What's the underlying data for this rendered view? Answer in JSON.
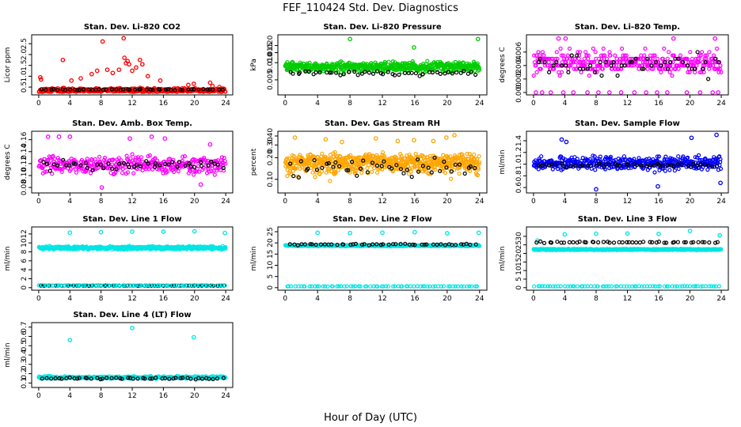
{
  "figure": {
    "title": "FEF_110424  Std. Dev. Diagnostics",
    "xlabel": "Hour of Day (UTC)"
  },
  "chart_data": [
    {
      "type": "scatter",
      "title": "Stan. Dev. Li-820 CO2",
      "xlabel": "",
      "ylabel": "Licor ppm",
      "xlim": [
        0,
        24
      ],
      "ylim": [
        0.25,
        2.8
      ],
      "xticks": [
        0,
        4,
        8,
        12,
        16,
        20,
        24
      ],
      "yticks": [
        0.5,
        1.0,
        1.5,
        2.0,
        2.5
      ],
      "ytick_labels": [
        "0.5",
        "1.0",
        "1.5",
        "2.0",
        "2.5"
      ],
      "log_y": false,
      "grid": false,
      "series": [
        {
          "color": "#ff0000",
          "hour_span": [
            0,
            24
          ],
          "n_points": 420,
          "base": 0.35,
          "spread": 0.15,
          "highlights": [
            [
              0.2,
              0.95
            ],
            [
              0.3,
              0.85
            ],
            [
              3.1,
              1.75
            ],
            [
              4.2,
              0.8
            ],
            [
              5.4,
              0.9
            ],
            [
              6.8,
              1.1
            ],
            [
              7.5,
              1.25
            ],
            [
              8.2,
              2.6
            ],
            [
              8.8,
              1.3
            ],
            [
              9.5,
              1.15
            ],
            [
              10.3,
              1.3
            ],
            [
              10.9,
              2.75
            ],
            [
              11.0,
              1.85
            ],
            [
              11.2,
              1.6
            ],
            [
              11.4,
              1.7
            ],
            [
              11.6,
              1.55
            ],
            [
              12.0,
              1.25
            ],
            [
              12.5,
              1.4
            ],
            [
              13.0,
              1.75
            ],
            [
              13.3,
              1.55
            ],
            [
              14.0,
              1.0
            ],
            [
              15.6,
              0.8
            ],
            [
              19.2,
              0.6
            ],
            [
              19.9,
              0.65
            ],
            [
              22.0,
              0.7
            ],
            [
              22.3,
              0.55
            ],
            [
              23.2,
              0.5
            ]
          ]
        },
        {
          "color": "#000000",
          "hour_span": [
            0.3,
            23.8
          ],
          "n_points": 48,
          "base": 0.38,
          "spread": 0.04,
          "highlights": []
        }
      ]
    },
    {
      "type": "scatter",
      "title": "Stan. Dev. Li-820 Pressure",
      "xlabel": "",
      "ylabel": "kPa",
      "xlim": [
        0,
        24
      ],
      "ylim": [
        0.003,
        0.028
      ],
      "xticks": [
        0,
        4,
        8,
        12,
        16,
        20,
        24
      ],
      "yticks": [
        0.005,
        0.01,
        0.015,
        0.02
      ],
      "ytick_labels": [
        "0.005",
        "0.010",
        "0.015",
        "0.020"
      ],
      "log_y": true,
      "grid": false,
      "series": [
        {
          "color": "#00cc00",
          "hour_span": [
            0,
            24
          ],
          "n_points": 520,
          "base": 0.0085,
          "spread": 0.0025,
          "highlights": [
            [
              8.0,
              0.026
            ],
            [
              15.9,
              0.0185
            ],
            [
              23.8,
              0.026
            ]
          ]
        },
        {
          "color": "#000000",
          "hour_span": [
            0.3,
            23.8
          ],
          "n_points": 48,
          "base": 0.0065,
          "spread": 0.0008,
          "highlights": []
        }
      ]
    },
    {
      "type": "scatter",
      "title": "Stan. Dev. Li-820 Temp.",
      "xlabel": "",
      "ylabel": "degrees C",
      "xlim": [
        0,
        24
      ],
      "ylim": [
        0,
        0.0082
      ],
      "xticks": [
        0,
        4,
        8,
        12,
        16,
        20,
        24
      ],
      "yticks": [
        0.0,
        0.002,
        0.004,
        0.006
      ],
      "ytick_labels": [
        "0.000",
        "0.002",
        "0.004",
        "0.006"
      ],
      "log_y": false,
      "grid": false,
      "series": [
        {
          "color": "#ff00ff",
          "hour_span": [
            0,
            24
          ],
          "n_points": 360,
          "base": 0.0045,
          "spread": 0.0025,
          "quantize": 0.0005,
          "highlights": [
            [
              0.3,
              0.0
            ],
            [
              1.1,
              0.0
            ],
            [
              2.2,
              0.0
            ],
            [
              3.8,
              0.0
            ],
            [
              5.1,
              0.0
            ],
            [
              6.9,
              0.0
            ],
            [
              8.3,
              0.0
            ],
            [
              9.7,
              0.0
            ],
            [
              11.2,
              0.0
            ],
            [
              12.9,
              0.0
            ],
            [
              14.4,
              0.0
            ],
            [
              15.8,
              0.0
            ],
            [
              17.1,
              0.0
            ],
            [
              19.6,
              0.0
            ],
            [
              21.3,
              0.0
            ],
            [
              22.9,
              0.0
            ],
            [
              23.6,
              0.0
            ],
            [
              3.2,
              0.008
            ],
            [
              4.1,
              0.008
            ],
            [
              17.9,
              0.008
            ],
            [
              23.2,
              0.008
            ]
          ]
        },
        {
          "color": "#000000",
          "hour_span": [
            0.3,
            23.8
          ],
          "n_points": 48,
          "base": 0.004,
          "spread": 0.0025,
          "quantize": 0.0005,
          "highlights": []
        }
      ]
    },
    {
      "type": "scatter",
      "title": "Stan. Dev. Amb. Box Temp.",
      "xlabel": "",
      "ylabel": "degrees C",
      "xlim": [
        0,
        24
      ],
      "ylim": [
        0.075,
        0.17
      ],
      "xticks": [
        0,
        4,
        8,
        12,
        16,
        20,
        24
      ],
      "yticks": [
        0.08,
        0.1,
        0.12,
        0.14,
        0.16
      ],
      "ytick_labels": [
        "0.08",
        "0.10",
        "0.12",
        "0.14",
        "0.16"
      ],
      "log_y": false,
      "grid": false,
      "series": [
        {
          "color": "#ff00ff",
          "hour_span": [
            0,
            24
          ],
          "n_points": 360,
          "base": 0.118,
          "spread": 0.022,
          "highlights": [
            [
              1.2,
              0.165
            ],
            [
              2.6,
              0.165
            ],
            [
              4.0,
              0.165
            ],
            [
              8.1,
              0.08
            ],
            [
              11.7,
              0.162
            ],
            [
              14.5,
              0.165
            ],
            [
              16.2,
              0.162
            ],
            [
              20.8,
              0.085
            ],
            [
              22.0,
              0.152
            ]
          ]
        },
        {
          "color": "#000000",
          "hour_span": [
            0.3,
            23.8
          ],
          "n_points": 48,
          "base": 0.118,
          "spread": 0.012,
          "highlights": []
        }
      ]
    },
    {
      "type": "scatter",
      "title": "Stan. Dev. Gas Stream RH",
      "xlabel": "",
      "ylabel": "percent",
      "xlim": [
        0,
        24
      ],
      "ylim": [
        0.07,
        0.43
      ],
      "xticks": [
        0,
        4,
        8,
        12,
        16,
        20,
        24
      ],
      "yticks": [
        0.1,
        0.2,
        0.3,
        0.4
      ],
      "ytick_labels": [
        "0.10",
        "0.20",
        "0.30",
        "0.40"
      ],
      "log_y": true,
      "grid": false,
      "series": [
        {
          "color": "#ffa500",
          "hour_span": [
            0,
            24
          ],
          "n_points": 620,
          "base": 0.17,
          "spread": 0.08,
          "highlights": [
            [
              1.2,
              0.38
            ],
            [
              5.0,
              0.36
            ],
            [
              7.0,
              0.33
            ],
            [
              11.2,
              0.37
            ],
            [
              13.9,
              0.34
            ],
            [
              15.9,
              0.35
            ],
            [
              18.3,
              0.34
            ],
            [
              19.9,
              0.38
            ],
            [
              20.9,
              0.41
            ]
          ]
        },
        {
          "color": "#000000",
          "hour_span": [
            0.3,
            23.8
          ],
          "n_points": 48,
          "base": 0.15,
          "spread": 0.06,
          "highlights": []
        }
      ]
    },
    {
      "type": "scatter",
      "title": "Stan. Dev. Sample Flow",
      "xlabel": "",
      "ylabel": "ml/min",
      "xlim": [
        0,
        24
      ],
      "ylim": [
        0.55,
        1.52
      ],
      "xticks": [
        0,
        4,
        8,
        12,
        16,
        20,
        24
      ],
      "yticks": [
        0.6,
        0.8,
        1.0,
        1.2,
        1.4
      ],
      "ytick_labels": [
        "0.6",
        "0.8",
        "1.0",
        "1.2",
        "1.4"
      ],
      "log_y": false,
      "grid": false,
      "series": [
        {
          "color": "#0000ff",
          "hour_span": [
            0,
            24
          ],
          "n_points": 420,
          "base": 1.02,
          "spread": 0.17,
          "highlights": [
            [
              3.6,
              1.42
            ],
            [
              4.2,
              1.38
            ],
            [
              8.0,
              0.57
            ],
            [
              15.9,
              0.62
            ],
            [
              20.2,
              1.45
            ],
            [
              23.4,
              1.5
            ],
            [
              23.9,
              0.68
            ]
          ]
        },
        {
          "color": "#000000",
          "hour_span": [
            0.3,
            23.8
          ],
          "n_points": 48,
          "base": 0.98,
          "spread": 0.05,
          "highlights": []
        }
      ]
    },
    {
      "type": "scatter",
      "title": "Stan. Dev. Line 1 Flow",
      "xlabel": "",
      "ylabel": "ml/min",
      "xlim": [
        0,
        24
      ],
      "ylim": [
        0,
        13
      ],
      "xticks": [
        0,
        4,
        8,
        12,
        16,
        20,
        24
      ],
      "yticks": [
        0,
        2,
        4,
        6,
        8,
        10,
        12
      ],
      "ytick_labels": [
        "0",
        "2",
        "4",
        "6",
        "8",
        "10",
        "12"
      ],
      "log_y": false,
      "grid": false,
      "series": [
        {
          "color": "#00e5e5",
          "hour_span": [
            0,
            24
          ],
          "n_points": 520,
          "base": 8.9,
          "spread": 0.5,
          "highlights": [
            [
              4.0,
              12.3
            ],
            [
              8.0,
              12.4
            ],
            [
              12.0,
              12.5
            ],
            [
              16.0,
              12.5
            ],
            [
              20.0,
              12.6
            ],
            [
              23.9,
              12.2
            ]
          ]
        },
        {
          "color": "#000000",
          "hour_span": [
            0,
            24
          ],
          "n_points": 70,
          "base": 0.45,
          "spread": 0.05,
          "highlights": []
        },
        {
          "color": "#00e5e5",
          "hour_span": [
            0,
            24
          ],
          "n_points": 70,
          "base": 0.5,
          "spread": 0.05,
          "highlights": []
        }
      ]
    },
    {
      "type": "scatter",
      "title": "Stan. Dev. Line 2 Flow",
      "xlabel": "",
      "ylabel": "ml/min",
      "xlim": [
        0,
        24
      ],
      "ylim": [
        0,
        26
      ],
      "xticks": [
        0,
        4,
        8,
        12,
        16,
        20,
        24
      ],
      "yticks": [
        0,
        5,
        10,
        15,
        20,
        25
      ],
      "ytick_labels": [
        "0",
        "5",
        "10",
        "15",
        "20",
        "25"
      ],
      "log_y": false,
      "grid": false,
      "series": [
        {
          "color": "#00e5e5",
          "hour_span": [
            0,
            24
          ],
          "n_points": 520,
          "base": 18.8,
          "spread": 0.4,
          "highlights": [
            [
              4.0,
              24.5
            ],
            [
              8.0,
              24.4
            ],
            [
              12.0,
              24.6
            ],
            [
              16.0,
              24.8
            ],
            [
              20.0,
              24.3
            ],
            [
              23.9,
              24.5
            ]
          ]
        },
        {
          "color": "#000000",
          "hour_span": [
            0.3,
            23.8
          ],
          "n_points": 48,
          "base": 19.3,
          "spread": 0.5,
          "highlights": []
        },
        {
          "color": "#00e5e5",
          "hour_span": [
            0,
            24
          ],
          "n_points": 70,
          "base": 0.6,
          "spread": 0.1,
          "highlights": []
        }
      ]
    },
    {
      "type": "scatter",
      "title": "Stan. Dev. Line 3 Flow",
      "xlabel": "",
      "ylabel": "ml/min",
      "xlim": [
        0,
        24
      ],
      "ylim": [
        0,
        34
      ],
      "xticks": [
        0,
        4,
        8,
        12,
        16,
        20,
        24
      ],
      "yticks": [
        0,
        5,
        10,
        15,
        20,
        25,
        30
      ],
      "ytick_labels": [
        "0",
        "5",
        "10",
        "15",
        "20",
        "25",
        "30"
      ],
      "log_y": false,
      "grid": false,
      "series": [
        {
          "color": "#00e5e5",
          "hour_span": [
            0,
            24
          ],
          "n_points": 520,
          "base": 22.3,
          "spread": 0.5,
          "highlights": [
            [
              0.5,
              27.5
            ],
            [
              4.0,
              31.2
            ],
            [
              8.0,
              31.5
            ],
            [
              12.0,
              31.6
            ],
            [
              16.0,
              31.4
            ],
            [
              20.0,
              33.1
            ],
            [
              23.8,
              30.6
            ]
          ]
        },
        {
          "color": "#000000",
          "hour_span": [
            0.3,
            23.8
          ],
          "n_points": 48,
          "base": 26.5,
          "spread": 0.6,
          "highlights": []
        },
        {
          "color": "#00e5e5",
          "hour_span": [
            0,
            24
          ],
          "n_points": 70,
          "base": 0.8,
          "spread": 0.15,
          "highlights": []
        }
      ]
    },
    {
      "type": "scatter",
      "title": "Stan. Dev. Line 4 (LT) Flow",
      "xlabel": "",
      "ylabel": "ml/min",
      "xlim": [
        0,
        24
      ],
      "ylim": [
        0.08,
        0.72
      ],
      "xticks": [
        0,
        4,
        8,
        12,
        16,
        20,
        24
      ],
      "yticks": [
        0.1,
        0.2,
        0.3,
        0.4,
        0.5,
        0.6,
        0.7
      ],
      "ytick_labels": [
        "0.1",
        "0.2",
        "0.3",
        "0.4",
        "0.5",
        "0.6",
        "0.7"
      ],
      "log_y": false,
      "grid": false,
      "series": [
        {
          "color": "#00e5e5",
          "hour_span": [
            0,
            24
          ],
          "n_points": 420,
          "base": 0.16,
          "spread": 0.018,
          "highlights": [
            [
              4.0,
              0.56
            ],
            [
              12.0,
              0.69
            ],
            [
              19.9,
              0.59
            ]
          ]
        },
        {
          "color": "#000000",
          "hour_span": [
            0.3,
            23.8
          ],
          "n_points": 48,
          "base": 0.15,
          "spread": 0.015,
          "highlights": []
        }
      ]
    }
  ]
}
